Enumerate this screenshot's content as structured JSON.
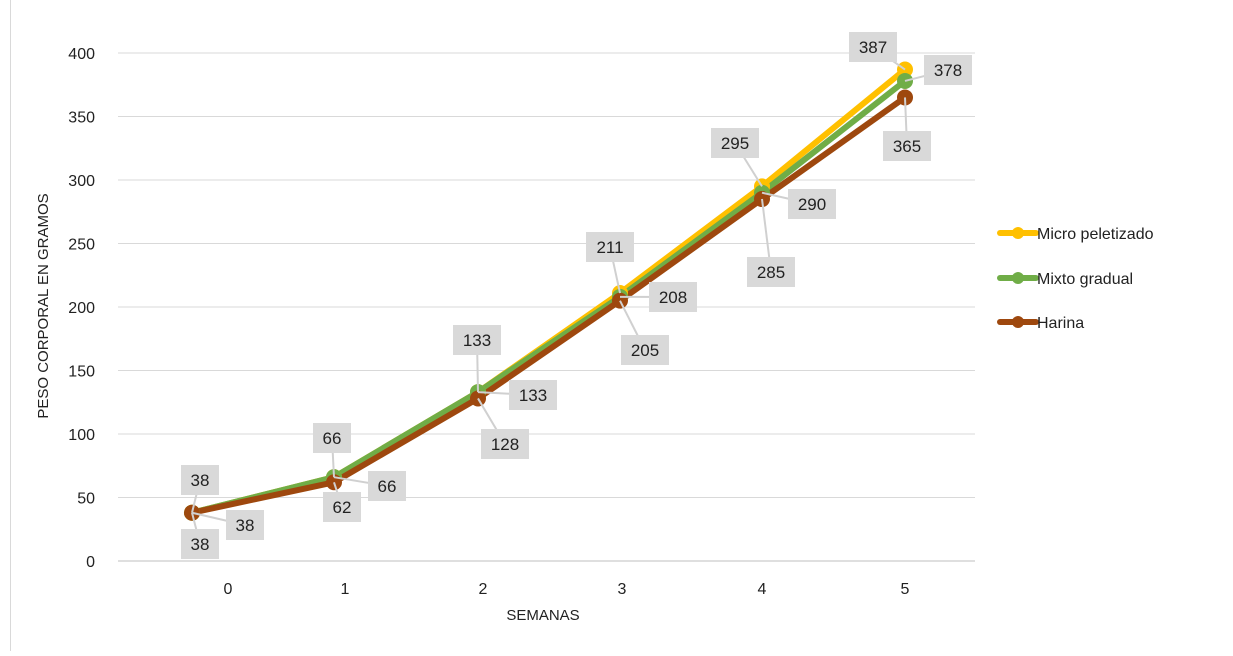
{
  "chart_data": {
    "type": "line",
    "title": "",
    "xlabel": "SEMANAS",
    "ylabel": "PESO CORPORAL EN GRAMOS",
    "categories": [
      "0",
      "1",
      "2",
      "3",
      "4",
      "5"
    ],
    "ylim": [
      0,
      400
    ],
    "yticks": [
      "0",
      "50",
      "100",
      "150",
      "200",
      "250",
      "300",
      "350",
      "400"
    ],
    "grid": "horizontal",
    "legend_position": "right",
    "series": [
      {
        "name": "Micro peletizado",
        "color": "#FFC000",
        "values": [
          38,
          66,
          133,
          211,
          295,
          387
        ],
        "labels": [
          "38",
          "66",
          "133",
          "211",
          "295",
          "387"
        ]
      },
      {
        "name": "Mixto gradual",
        "color": "#70AD47",
        "values": [
          38,
          66,
          133,
          208,
          290,
          378
        ],
        "labels": [
          "38",
          "66",
          "133",
          "208",
          "290",
          "378"
        ]
      },
      {
        "name": "Harina",
        "color": "#9E480E",
        "values": [
          38,
          62,
          128,
          205,
          285,
          365
        ],
        "labels": [
          "38",
          "62",
          "128",
          "205",
          "285",
          "365"
        ]
      }
    ]
  }
}
